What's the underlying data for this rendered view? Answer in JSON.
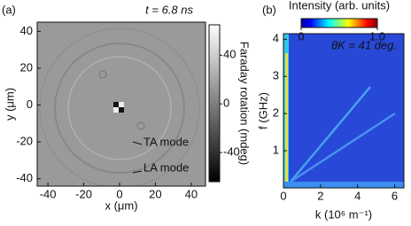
{
  "chart_data": [
    {
      "type": "image",
      "panel": "(a)",
      "title": "t = 6.8 ns",
      "xlabel": "x (μm)",
      "ylabel": "y (μm)",
      "xlim": [
        -46,
        48
      ],
      "ylim": [
        -44,
        45
      ],
      "xticks": [
        -40,
        -20,
        0,
        20,
        40
      ],
      "yticks": [
        -40,
        -20,
        0,
        20,
        40
      ],
      "colorbar_label": "Faraday rotation (mdeg)",
      "clim": [
        -64,
        65
      ],
      "cticks": [
        -40,
        0,
        40
      ],
      "annotations": [
        {
          "text": "TA mode",
          "color": "#2a2acc"
        },
        {
          "text": "LA mode",
          "color": "#e01818"
        }
      ]
    },
    {
      "type": "heatmap",
      "panel": "(b)",
      "title": "θK = 41 deg.",
      "xlabel": "k (10⁶ m⁻¹)",
      "ylabel": "f (GHz)",
      "xlim": [
        0,
        6.5
      ],
      "ylim": [
        0,
        4.15
      ],
      "xticks": [
        0,
        2,
        4,
        6
      ],
      "yticks": [
        1,
        2,
        3,
        4
      ],
      "colorbar_label": "Intensity (arb. units)",
      "clim": [
        0,
        1
      ],
      "cticks": [
        0,
        {
          "value": 1,
          "label": "1.0"
        }
      ]
    }
  ]
}
